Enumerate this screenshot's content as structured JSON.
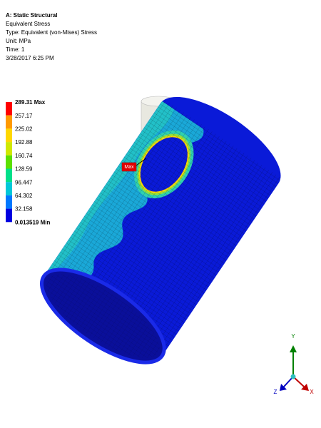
{
  "header": {
    "title": "A: Static Structural",
    "lines": [
      "Equivalent Stress",
      "Type: Equivalent (von-Mises) Stress",
      "Unit: MPa",
      "Time: 1",
      "3/28/2017 6:25 PM"
    ]
  },
  "legend": {
    "labels": [
      "289.31 Max",
      "257.17",
      "225.02",
      "192.88",
      "160.74",
      "128.59",
      "96.447",
      "64.302",
      "32.158",
      "0.013519 Min"
    ]
  },
  "probe": {
    "label": "Max"
  },
  "triad": {
    "y": "Y",
    "z": "Z",
    "x": "X"
  }
}
